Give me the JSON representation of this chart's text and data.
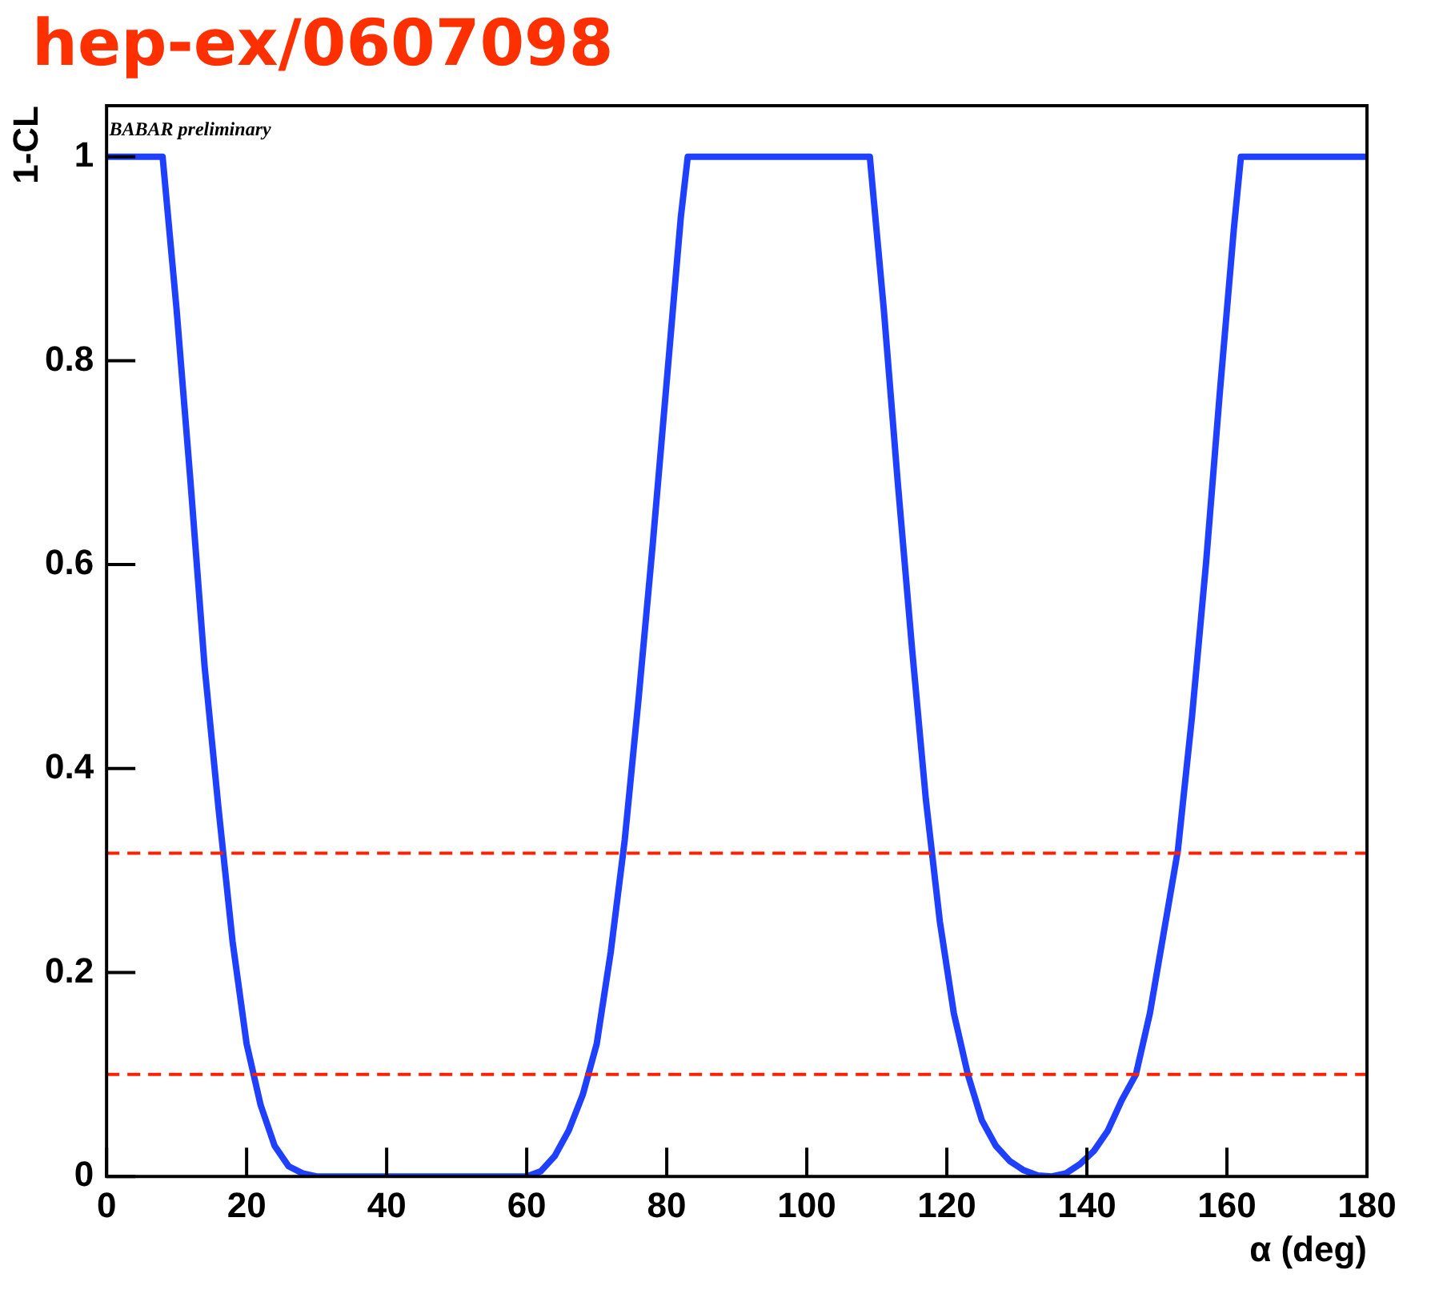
{
  "chart_data": {
    "type": "line",
    "title": "hep-ex/0607098",
    "xlabel": "α (deg)",
    "ylabel": "1-CL",
    "annotations": [
      "BABAR preliminary"
    ],
    "series": [
      {
        "color": "#2040ff",
        "x": [
          0,
          8,
          10,
          12,
          14,
          16,
          18,
          20,
          22,
          24,
          26,
          28,
          30,
          60,
          62,
          64,
          66,
          68,
          70,
          72,
          74,
          76,
          78,
          80,
          82,
          83,
          109,
          111,
          113,
          115,
          117,
          119,
          121,
          123,
          125,
          127,
          129,
          131,
          133,
          135,
          137,
          139,
          141,
          143,
          145,
          147,
          149,
          151,
          153,
          155,
          157,
          159,
          161,
          162,
          180
        ],
        "values": [
          1,
          1,
          0.85,
          0.68,
          0.5,
          0.36,
          0.23,
          0.13,
          0.07,
          0.03,
          0.01,
          0.003,
          0,
          0,
          0.005,
          0.02,
          0.045,
          0.08,
          0.13,
          0.22,
          0.33,
          0.47,
          0.62,
          0.78,
          0.94,
          1,
          1,
          0.85,
          0.68,
          0.52,
          0.37,
          0.25,
          0.16,
          0.1,
          0.055,
          0.03,
          0.015,
          0.006,
          0.001,
          0,
          0.003,
          0.012,
          0.025,
          0.045,
          0.075,
          0.1,
          0.16,
          0.24,
          0.32,
          0.45,
          0.6,
          0.77,
          0.93,
          1,
          1
        ]
      }
    ],
    "xlim": [
      0,
      180
    ],
    "xticks": [
      0,
      20,
      40,
      60,
      80,
      100,
      120,
      140,
      160,
      180
    ],
    "ylim": [
      0,
      1.05
    ],
    "yticks": [
      0,
      0.2,
      0.4,
      0.6,
      0.8,
      1
    ],
    "ref_lines": [
      {
        "axis": "y",
        "value": 0.317,
        "color": "#ff2000",
        "line_style": "dashed"
      },
      {
        "axis": "y",
        "value": 0.1,
        "color": "#ff2000",
        "line_style": "dashed"
      }
    ],
    "grid": false,
    "legend": false,
    "marker": "none",
    "line_style": "solid"
  }
}
